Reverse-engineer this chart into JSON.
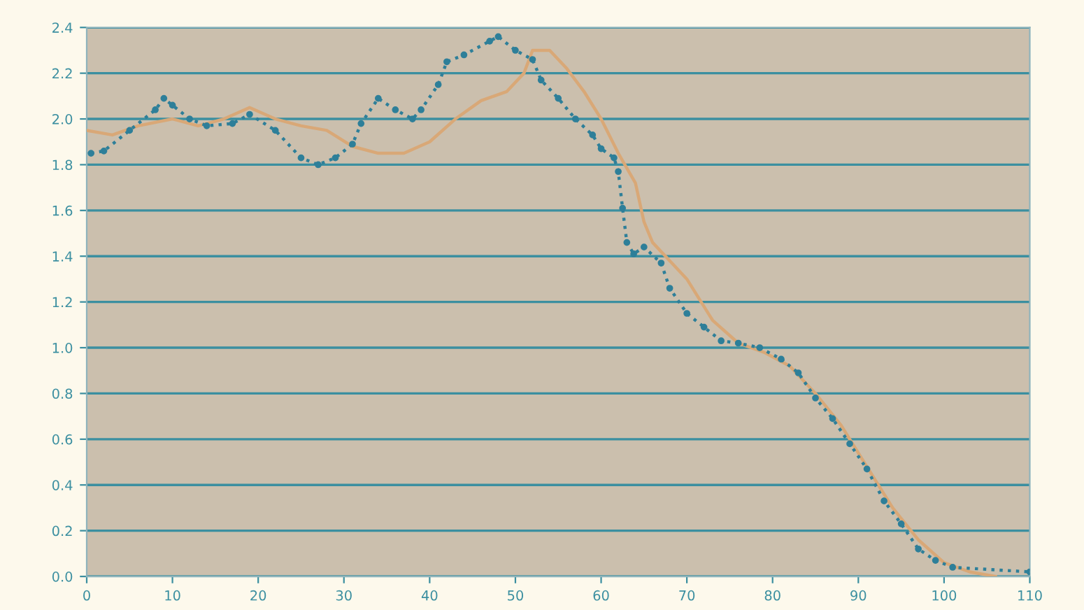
{
  "chart_data": {
    "type": "line",
    "xlim": [
      0,
      110
    ],
    "xticks": [
      0,
      10,
      20,
      30,
      40,
      50,
      60,
      70,
      80,
      90,
      100,
      110
    ],
    "ylim": [
      0,
      2.4
    ],
    "yticks": [
      {
        "value": 0,
        "label": "0.0"
      },
      0.2,
      0.4,
      0.6,
      0.8,
      {
        "value": 1,
        "label": "1.0"
      },
      1.2,
      1.4,
      1.6,
      1.8,
      {
        "value": 2,
        "label": "2.0"
      },
      2.2,
      2.4
    ],
    "grid": "y",
    "series": [
      {
        "color": "#2e7f99",
        "marker": "circle",
        "line_style": "dotted",
        "x": [
          0.5,
          2,
          5,
          8,
          9,
          10,
          12,
          14,
          17,
          19,
          22,
          25,
          27,
          29,
          31,
          32,
          34,
          36,
          38,
          39,
          41,
          42,
          44,
          47,
          48,
          50,
          52,
          53,
          55,
          57,
          59,
          60,
          61.5,
          62,
          62.5,
          63,
          63.8,
          65,
          67,
          68,
          70,
          72,
          74,
          76,
          78.5,
          81,
          83,
          85,
          87,
          89,
          91,
          93,
          95,
          97,
          99,
          101,
          110
        ],
        "values": [
          1.85,
          1.86,
          1.95,
          2.04,
          2.09,
          2.06,
          2.0,
          1.97,
          1.98,
          2.02,
          1.95,
          1.83,
          1.8,
          1.83,
          1.89,
          1.98,
          2.09,
          2.04,
          2.0,
          2.04,
          2.15,
          2.25,
          2.28,
          2.34,
          2.36,
          2.3,
          2.26,
          2.17,
          2.09,
          2.0,
          1.93,
          1.87,
          1.83,
          1.77,
          1.61,
          1.46,
          1.41,
          1.44,
          1.37,
          1.26,
          1.15,
          1.09,
          1.03,
          1.02,
          1.0,
          0.95,
          0.89,
          0.78,
          0.69,
          0.58,
          0.47,
          0.33,
          0.23,
          0.12,
          0.07,
          0.04,
          0.02
        ]
      },
      {
        "color": "#d9a877",
        "marker": "none",
        "line_style": "solid",
        "x": [
          0,
          3,
          6,
          10,
          13,
          16,
          19,
          22,
          25,
          28,
          31,
          34,
          37,
          40,
          43,
          46,
          49,
          51,
          52,
          54,
          56,
          58,
          60,
          62,
          64,
          65,
          66,
          68,
          70,
          73,
          76,
          79,
          82,
          85,
          88,
          91,
          94,
          97,
          100,
          103,
          106
        ],
        "values": [
          1.95,
          1.93,
          1.97,
          2.0,
          1.97,
          2.0,
          2.05,
          2.0,
          1.97,
          1.95,
          1.88,
          1.85,
          1.85,
          1.9,
          2.0,
          2.08,
          2.12,
          2.2,
          2.3,
          2.3,
          2.22,
          2.12,
          2.0,
          1.85,
          1.72,
          1.55,
          1.46,
          1.38,
          1.3,
          1.12,
          1.02,
          0.98,
          0.92,
          0.8,
          0.66,
          0.48,
          0.3,
          0.16,
          0.06,
          0.02,
          0.0
        ]
      }
    ]
  }
}
